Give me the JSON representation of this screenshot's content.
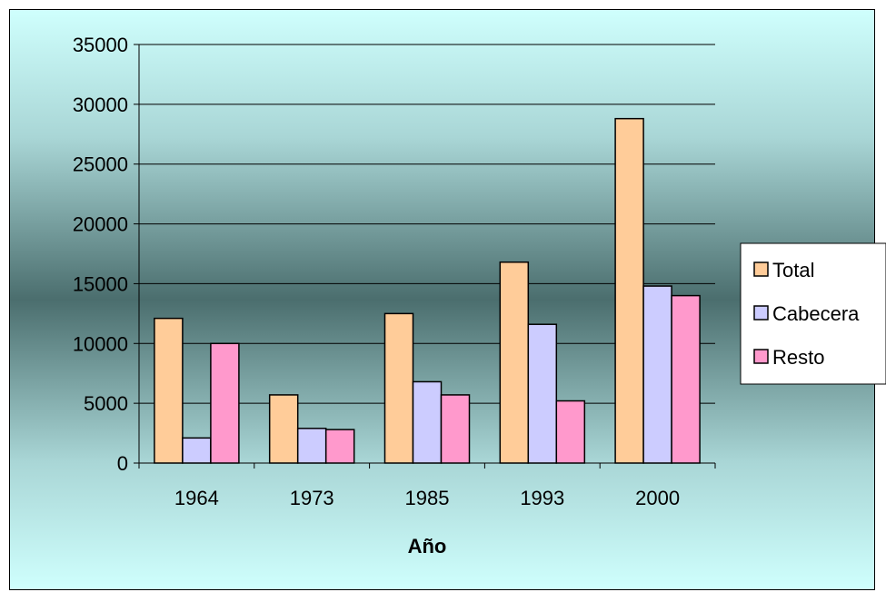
{
  "chart_data": {
    "type": "bar",
    "categories": [
      "1964",
      "1973",
      "1985",
      "1993",
      "2000"
    ],
    "series": [
      {
        "name": "Total",
        "color": "#ffcc99",
        "values": [
          12100,
          5700,
          12500,
          16800,
          28800
        ]
      },
      {
        "name": "Cabecera",
        "color": "#ccccff",
        "values": [
          2100,
          2900,
          6800,
          11600,
          14800
        ]
      },
      {
        "name": "Resto",
        "color": "#ff99cc",
        "values": [
          10000,
          2800,
          5700,
          5200,
          14000
        ]
      }
    ],
    "title": "",
    "xlabel": "Año",
    "ylabel": "",
    "ylim": [
      0,
      35000
    ],
    "yticks": [
      "0",
      "5000",
      "10000",
      "15000",
      "20000",
      "25000",
      "30000",
      "35000"
    ],
    "grid": true,
    "legend_position": "right"
  }
}
